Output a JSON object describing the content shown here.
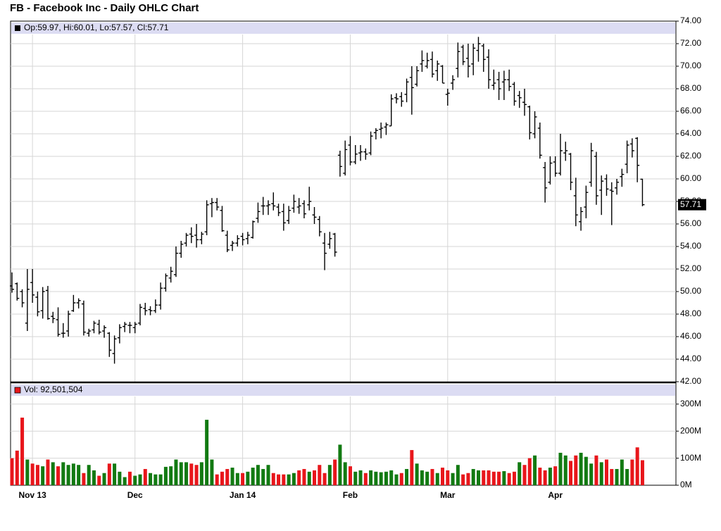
{
  "chart_data": [
    {
      "type": "ohlc",
      "title": "FB - Facebook Inc - Daily OHLC Chart",
      "header": "Op:59.97, Hi:60.01, Lo:57.57, Cl:57.71",
      "last_label": "57.71",
      "color": "#000000",
      "grid": true,
      "categories": [
        null,
        null,
        null,
        null,
        "Nov 13",
        null,
        null,
        null,
        null,
        null,
        null,
        null,
        null,
        null,
        null,
        null,
        null,
        null,
        null,
        null,
        null,
        null,
        null,
        null,
        "Dec",
        null,
        null,
        null,
        null,
        null,
        null,
        null,
        null,
        null,
        null,
        null,
        null,
        null,
        null,
        null,
        null,
        null,
        null,
        null,
        null,
        "Jan 14",
        null,
        null,
        null,
        null,
        null,
        null,
        null,
        null,
        null,
        null,
        null,
        null,
        null,
        null,
        null,
        null,
        null,
        null,
        null,
        null,
        "Feb",
        null,
        null,
        null,
        null,
        null,
        null,
        null,
        null,
        null,
        null,
        null,
        null,
        null,
        null,
        null,
        null,
        null,
        null,
        "Mar",
        null,
        null,
        null,
        null,
        null,
        null,
        null,
        null,
        null,
        null,
        null,
        null,
        null,
        null,
        null,
        null,
        null,
        null,
        null,
        null,
        "Apr",
        null,
        null,
        null,
        null,
        null,
        null,
        null,
        null,
        null,
        null,
        null,
        null,
        null,
        null,
        null,
        null,
        null
      ],
      "open": [
        50.5,
        50.7,
        50.0,
        47.2,
        50.8,
        49.5,
        48.3,
        50.1,
        47.8,
        47.5,
        46.3,
        46.5,
        48.3,
        49.0,
        48.9,
        46.3,
        46.6,
        47.1,
        46.5,
        46.3,
        44.5,
        45.9,
        46.9,
        47.0,
        46.8,
        47.2,
        48.5,
        48.4,
        48.3,
        48.8,
        50.3,
        51.2,
        51.5,
        53.4,
        54.3,
        55.1,
        55.0,
        54.6,
        55.3,
        57.8,
        57.9,
        57.2,
        55.0,
        54.1,
        54.3,
        54.9,
        54.7,
        54.8,
        56.5,
        57.6,
        57.6,
        57.8,
        57.5,
        57.1,
        56.3,
        57.4,
        57.5,
        57.8,
        57.7,
        56.8,
        56.4,
        54.3,
        54.2,
        55.1,
        62.1,
        60.5,
        63.0,
        61.5,
        62.3,
        62.4,
        62.3,
        64.1,
        64.4,
        64.6,
        64.7,
        67.2,
        67.3,
        67.5,
        69.0,
        68.4,
        70.2,
        70.0,
        70.6,
        69.6,
        70.0,
        67.5,
        68.5,
        69.8,
        71.7,
        70.7,
        70.2,
        71.4,
        71.8,
        70.8,
        68.3,
        68.8,
        68.6,
        68.8,
        68.4,
        67.4,
        66.8,
        66.4,
        64.0,
        64.5,
        61.0,
        59.7,
        61.5,
        60.5,
        62.3,
        62.2,
        58.5,
        56.2,
        57.5,
        59.7,
        62.0,
        59.0,
        60.0,
        59.0,
        59.2,
        60.2,
        61.3,
        63.1,
        63.6,
        59.97
      ],
      "high": [
        51.7,
        50.8,
        50.2,
        52.0,
        52.0,
        50.0,
        50.4,
        50.5,
        48.2,
        48.6,
        47.2,
        48.3,
        49.7,
        49.4,
        49.2,
        46.7,
        47.4,
        47.5,
        47.0,
        46.4,
        46.1,
        47.1,
        47.3,
        47.3,
        47.3,
        48.9,
        49.0,
        48.7,
        49.3,
        50.8,
        51.6,
        52.2,
        54.0,
        54.5,
        55.2,
        55.7,
        56.0,
        55.3,
        58.1,
        58.3,
        58.3,
        57.6,
        55.4,
        54.5,
        55.0,
        55.2,
        55.3,
        56.3,
        57.9,
        58.4,
        58.1,
        58.8,
        57.8,
        57.8,
        57.6,
        58.6,
        58.3,
        58.1,
        59.3,
        57.5,
        56.7,
        55.2,
        55.3,
        55.2,
        62.5,
        63.4,
        63.8,
        63.0,
        63.0,
        62.7,
        64.2,
        64.5,
        65.0,
        65.0,
        67.5,
        67.6,
        67.7,
        68.9,
        70.0,
        70.0,
        71.4,
        71.2,
        71.3,
        70.5,
        70.1,
        68.0,
        69.2,
        72.1,
        71.9,
        72.0,
        72.0,
        72.6,
        72.0,
        71.5,
        69.7,
        69.5,
        69.6,
        69.7,
        68.6,
        67.8,
        68.0,
        66.5,
        66.0,
        65.0,
        61.5,
        62.0,
        62.0,
        64.0,
        63.3,
        62.3,
        60.1,
        57.5,
        59.4,
        63.2,
        62.4,
        60.3,
        60.4,
        59.7,
        60.0,
        60.9,
        63.4,
        63.6,
        63.7,
        60.01
      ],
      "low": [
        49.9,
        49.2,
        48.6,
        46.5,
        49.0,
        47.8,
        47.6,
        47.5,
        47.2,
        46.0,
        45.9,
        46.0,
        48.2,
        48.5,
        46.1,
        46.0,
        46.3,
        46.2,
        45.9,
        44.2,
        43.6,
        45.4,
        46.4,
        46.3,
        46.3,
        47.0,
        47.9,
        47.9,
        48.1,
        48.4,
        50.0,
        50.8,
        51.3,
        53.0,
        54.0,
        54.3,
        53.9,
        54.2,
        55.0,
        56.6,
        57.2,
        55.3,
        53.5,
        53.6,
        54.0,
        54.1,
        54.2,
        54.7,
        56.1,
        56.8,
        56.8,
        57.2,
        56.7,
        55.4,
        56.0,
        57.0,
        56.9,
        56.5,
        57.2,
        56.0,
        54.9,
        51.9,
        53.8,
        53.1,
        60.2,
        60.3,
        61.2,
        61.3,
        61.6,
        61.7,
        62.1,
        63.5,
        63.6,
        63.9,
        64.7,
        66.7,
        66.4,
        66.8,
        65.7,
        68.2,
        69.5,
        69.8,
        69.0,
        68.7,
        68.5,
        66.5,
        67.9,
        69.0,
        70.1,
        69.0,
        69.2,
        70.4,
        69.5,
        68.0,
        67.9,
        67.0,
        67.0,
        67.8,
        66.5,
        66.3,
        65.6,
        63.5,
        63.6,
        61.8,
        57.9,
        59.5,
        60.2,
        60.3,
        61.6,
        59.0,
        55.8,
        55.4,
        56.5,
        59.3,
        57.7,
        56.8,
        58.5,
        55.9,
        58.6,
        59.3,
        60.5,
        61.9,
        59.7,
        57.57
      ],
      "close": [
        50.2,
        49.4,
        49.0,
        50.2,
        49.7,
        48.2,
        50.0,
        47.6,
        47.6,
        46.2,
        46.3,
        48.0,
        49.0,
        49.2,
        46.4,
        46.5,
        47.2,
        46.4,
        46.8,
        44.8,
        45.8,
        46.8,
        47.1,
        47.0,
        47.1,
        48.6,
        48.3,
        48.3,
        48.8,
        50.3,
        51.4,
        51.8,
        53.4,
        54.2,
        55.0,
        54.9,
        54.6,
        55.1,
        57.7,
        57.9,
        57.5,
        55.4,
        53.7,
        54.3,
        54.7,
        54.6,
        55.0,
        56.2,
        57.1,
        57.6,
        57.7,
        57.6,
        57.0,
        56.1,
        57.2,
        58.0,
        57.6,
        56.9,
        58.0,
        56.6,
        55.3,
        53.4,
        54.7,
        53.5,
        61.1,
        62.6,
        61.5,
        62.2,
        62.4,
        62.2,
        63.8,
        64.3,
        64.5,
        64.8,
        67.1,
        67.1,
        66.9,
        68.6,
        68.1,
        69.6,
        70.5,
        70.5,
        69.3,
        70.2,
        68.5,
        67.6,
        68.8,
        71.3,
        70.4,
        70.0,
        71.6,
        72.0,
        70.6,
        68.8,
        68.5,
        68.0,
        68.8,
        68.2,
        66.9,
        67.2,
        66.6,
        64.1,
        65.5,
        62.1,
        59.2,
        61.4,
        60.5,
        62.5,
        62.5,
        59.7,
        56.8,
        57.1,
        58.8,
        62.5,
        58.5,
        59.8,
        59.1,
        58.9,
        59.7,
        60.4,
        63.0,
        62.5,
        61.2,
        57.71
      ],
      "ylim": [
        42,
        74
      ],
      "yticks": [
        {
          "value": 42,
          "label": "42.00"
        },
        {
          "value": 44,
          "label": "44.00"
        },
        {
          "value": 46,
          "label": "46.00"
        },
        {
          "value": 48,
          "label": "48.00"
        },
        {
          "value": 50,
          "label": "50.00"
        },
        {
          "value": 52,
          "label": "52.00"
        },
        {
          "value": 54,
          "label": "54.00"
        },
        {
          "value": 56,
          "label": "56.00"
        },
        {
          "value": 58,
          "label": "58.00"
        },
        {
          "value": 60,
          "label": "60.00"
        },
        {
          "value": 62,
          "label": "62.00"
        },
        {
          "value": 64,
          "label": "64.00"
        },
        {
          "value": 66,
          "label": "66.00"
        },
        {
          "value": 68,
          "label": "68.00"
        },
        {
          "value": 70,
          "label": "70.00"
        },
        {
          "value": 72,
          "label": "72.00"
        },
        {
          "value": 74,
          "label": "74.00"
        }
      ]
    },
    {
      "type": "bar",
      "header": "Vol: 92,501,504",
      "up_color": "#127a12",
      "down_color": "#e8161b",
      "values": [
        100,
        128,
        250,
        95,
        80,
        75,
        70,
        95,
        85,
        70,
        85,
        75,
        80,
        75,
        45,
        75,
        55,
        35,
        45,
        80,
        80,
        50,
        30,
        50,
        35,
        40,
        60,
        45,
        40,
        40,
        68,
        70,
        95,
        85,
        85,
        80,
        75,
        85,
        242,
        95,
        40,
        50,
        60,
        65,
        45,
        45,
        50,
        65,
        75,
        60,
        75,
        45,
        40,
        40,
        40,
        45,
        55,
        60,
        50,
        55,
        75,
        45,
        75,
        95,
        150,
        85,
        70,
        50,
        55,
        45,
        55,
        50,
        48,
        50,
        55,
        40,
        45,
        60,
        130,
        80,
        55,
        50,
        60,
        45,
        65,
        55,
        45,
        75,
        40,
        45,
        60,
        55,
        55,
        55,
        50,
        50,
        52,
        45,
        50,
        85,
        75,
        100,
        110,
        65,
        55,
        65,
        70,
        120,
        110,
        90,
        110,
        120,
        105,
        80,
        110,
        85,
        95,
        60,
        60,
        95,
        60,
        95,
        140,
        92.501504
      ],
      "ylim": [
        0,
        375
      ],
      "yticks": [
        {
          "value": 0,
          "label": "0M"
        },
        {
          "value": 100,
          "label": "100M"
        },
        {
          "value": 200,
          "label": "200M"
        },
        {
          "value": 300,
          "label": "300M"
        }
      ]
    }
  ]
}
